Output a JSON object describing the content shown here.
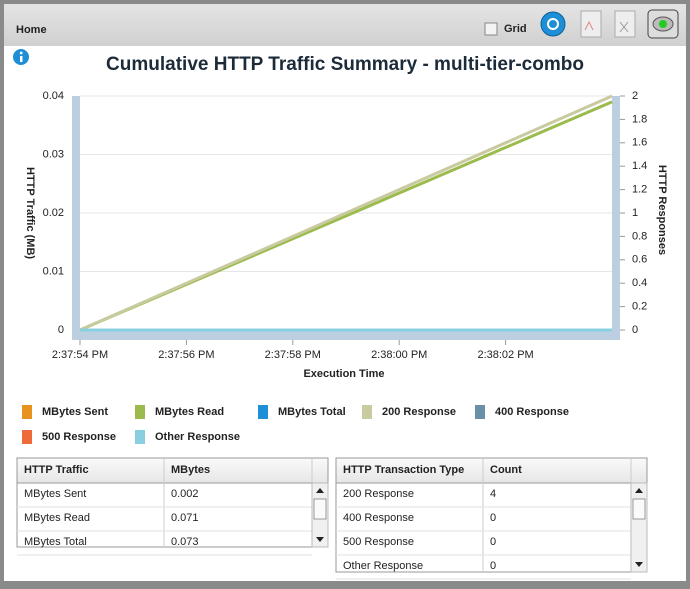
{
  "toolbar": {
    "home": "Home",
    "grid_label": "Grid"
  },
  "chart_data": {
    "type": "line",
    "title": "Cumulative HTTP Traffic Summary - multi-tier-combo",
    "x_label": "Execution Time",
    "y_label": "HTTP Traffic (MB)",
    "y2_label": "HTTP Responses",
    "x": [
      "2:37:54 PM",
      "2:38:04 PM"
    ],
    "xlim": [
      "2:37:54 PM",
      "2:38:04 PM"
    ],
    "xticks": [
      "2:37:54 PM",
      "2:37:56 PM",
      "2:37:58 PM",
      "2:38:00 PM",
      "2:38:02 PM"
    ],
    "ylim": [
      0,
      0.04
    ],
    "yticks": [
      0,
      0.01,
      0.02,
      0.03,
      0.04
    ],
    "y2lim": [
      0,
      2
    ],
    "y2ticks": [
      0,
      0.2,
      0.4,
      0.6,
      0.8,
      1,
      1.2,
      1.4,
      1.6,
      1.8,
      2
    ],
    "grid": true,
    "series": [
      {
        "name": "MBytes Sent",
        "color": "#e8921f",
        "values": [
          0,
          0
        ]
      },
      {
        "name": "MBytes Read",
        "color": "#9bbb4d",
        "values": [
          0,
          0.039
        ]
      },
      {
        "name": "MBytes Total",
        "color": "#1e90d8",
        "values": [
          0,
          0
        ]
      },
      {
        "name": "200 Response",
        "color": "#c9caa0",
        "values": [
          0,
          2
        ],
        "axis": "y2"
      },
      {
        "name": "400 Response",
        "color": "#6a8fa8",
        "values": [
          0,
          0
        ],
        "axis": "y2"
      },
      {
        "name": "500 Response",
        "color": "#ef6a3a",
        "values": [
          0,
          0
        ],
        "axis": "y2"
      },
      {
        "name": "Other Response",
        "color": "#88d0e0",
        "values": [
          0,
          0
        ],
        "axis": "y2"
      }
    ]
  },
  "tables": [
    {
      "headers": [
        "HTTP Traffic",
        "MBytes"
      ],
      "rows": [
        [
          "MBytes Sent",
          0.002
        ],
        [
          "MBytes Read",
          0.071
        ],
        [
          "MBytes Total",
          0.073
        ]
      ]
    },
    {
      "headers": [
        "HTTP Transaction Type",
        "Count"
      ],
      "rows": [
        [
          "200 Response",
          4
        ],
        [
          "400 Response",
          0
        ],
        [
          "500 Response",
          0
        ],
        [
          "Other Response",
          0
        ]
      ]
    }
  ]
}
